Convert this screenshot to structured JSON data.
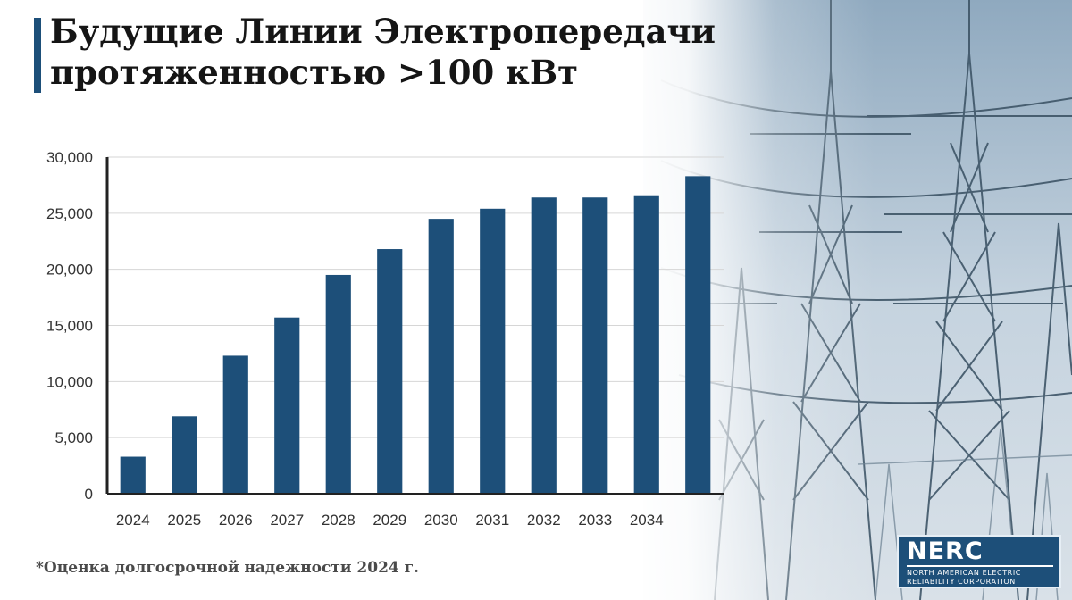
{
  "slide": {
    "title_line1": "Будущие Линии Электропередачи",
    "title_line2": "протяженностью >100 кВт",
    "footnote": "*Оценка долгосрочной надежности 2024 г.",
    "logo": {
      "name": "NERC",
      "subtitle": "NORTH AMERICAN ELECTRIC RELIABILITY CORPORATION"
    }
  },
  "chart_data": {
    "type": "bar",
    "categories": [
      "2024",
      "2025",
      "2026",
      "2027",
      "2028",
      "2029",
      "2030",
      "2031",
      "2032",
      "2033",
      "2034",
      ""
    ],
    "values": [
      3300,
      6900,
      12300,
      15700,
      19500,
      21800,
      24500,
      25400,
      26400,
      26400,
      26600,
      28300
    ],
    "yticks": [
      "0",
      "5,000",
      "10,000",
      "15,000",
      "20,000",
      "25,000",
      "30,000"
    ],
    "ylim": [
      0,
      30000
    ],
    "grid": true,
    "bar_color": "#1d4f79"
  }
}
